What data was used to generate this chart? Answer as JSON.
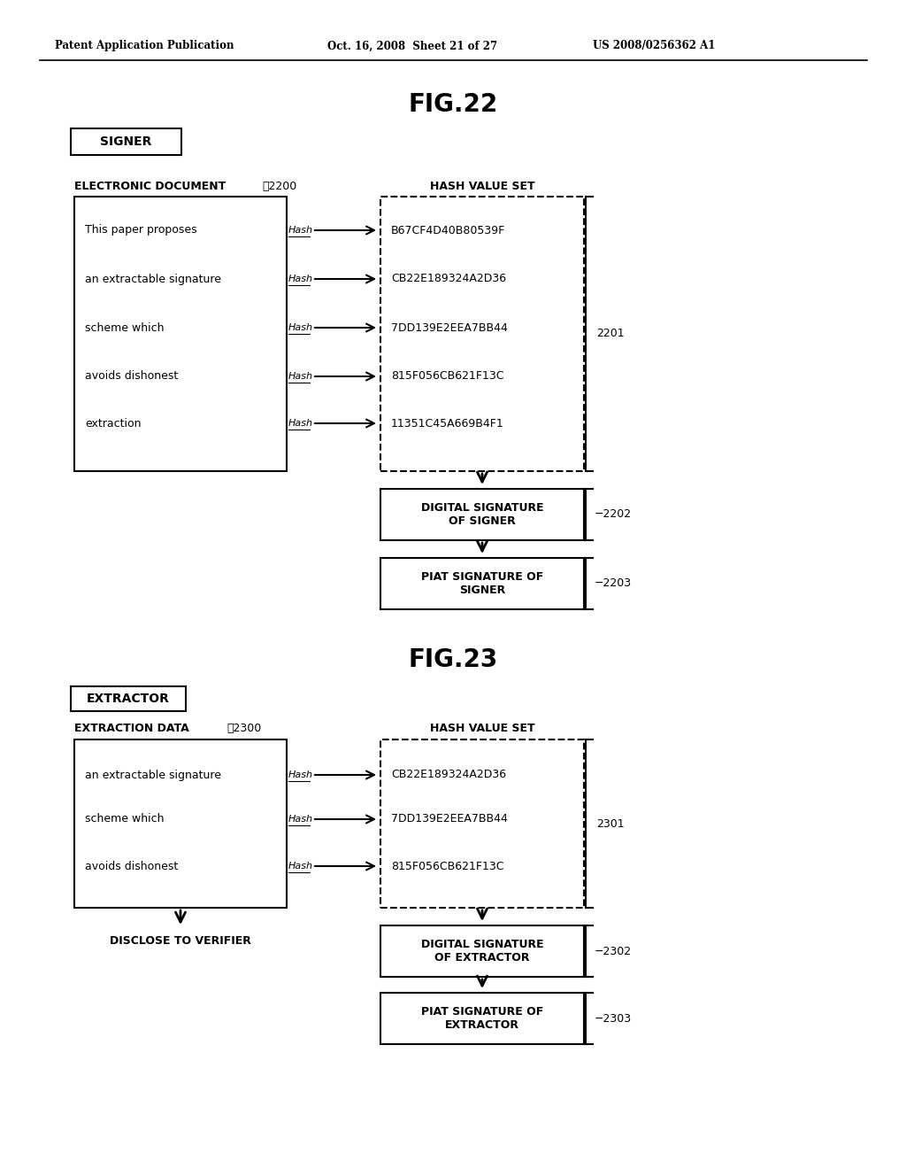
{
  "bg_color": "#ffffff",
  "header_left": "Patent Application Publication",
  "header_mid": "Oct. 16, 2008  Sheet 21 of 27",
  "header_right": "US 2008/0256362 A1",
  "fig22_title": "FIG.22",
  "fig23_title": "FIG.23",
  "fig22_signer_label": "SIGNER",
  "fig22_doc_label": "ELECTRONIC DOCUMENT",
  "fig22_doc_num": "✨2200",
  "fig22_hash_label": "HASH VALUE SET",
  "fig22_doc_lines": [
    "This paper proposes",
    "an extractable signature",
    "scheme which",
    "avoids dishonest",
    "extraction"
  ],
  "fig22_hashes": [
    "B67CF4D40B80539F",
    "CB22E189324A2D36",
    "7DD139E2EEA7BB44",
    "815F056CB621F13C",
    "11351C45A669B4F1"
  ],
  "fig22_ref2201": "2201",
  "fig22_dig_sig": "DIGITAL SIGNATURE\nOF SIGNER",
  "fig22_ref2202": "−2202",
  "fig22_piat_sig": "PIAT SIGNATURE OF\nSIGNER",
  "fig22_ref2203": "−2203",
  "fig23_extractor_label": "EXTRACTOR",
  "fig23_doc_label": "EXTRACTION DATA",
  "fig23_doc_num": "✨2300",
  "fig23_hash_label": "HASH VALUE SET",
  "fig23_doc_lines": [
    "an extractable signature",
    "scheme which",
    "avoids dishonest"
  ],
  "fig23_hashes": [
    "CB22E189324A2D36",
    "7DD139E2EEA7BB44",
    "815F056CB621F13C"
  ],
  "fig23_ref2301": "2301",
  "fig23_dig_sig": "DIGITAL SIGNATURE\nOF EXTRACTOR",
  "fig23_ref2302": "−2302",
  "fig23_piat_sig": "PIAT SIGNATURE OF\nEXTRACTOR",
  "fig23_ref2303": "−2303",
  "fig23_disclose": "DISCLOSE TO VERIFIER",
  "hash_text": "Hash"
}
